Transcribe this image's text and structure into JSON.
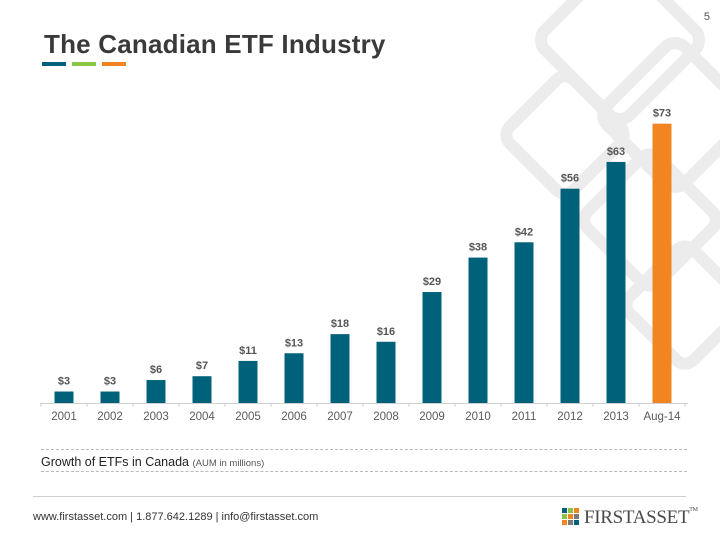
{
  "page": {
    "number": "5"
  },
  "title": {
    "text": "The Canadian ETF Industry",
    "underline_colors": [
      "#00627a",
      "#8bc342",
      "#f28421"
    ]
  },
  "chart_data": {
    "type": "bar",
    "categories": [
      "2001",
      "2002",
      "2003",
      "2004",
      "2005",
      "2006",
      "2007",
      "2008",
      "2009",
      "2010",
      "2011",
      "2012",
      "2013",
      "Aug-14"
    ],
    "values": [
      3,
      3,
      6,
      7,
      11,
      13,
      18,
      16,
      29,
      38,
      42,
      56,
      63,
      73
    ],
    "data_labels": [
      "$3",
      "$3",
      "$6",
      "$7",
      "$11",
      "$13",
      "$18",
      "$16",
      "$29",
      "$38",
      "$42",
      "$56",
      "$63",
      "$73"
    ],
    "highlight_index": 13,
    "colors": {
      "bar": "#00627a",
      "highlight": "#f28421",
      "label": "#555555"
    },
    "xlabel": "",
    "ylabel": "",
    "ylim": [
      0,
      75
    ],
    "grid": false,
    "legend": "none"
  },
  "caption": {
    "main": "Growth of ETFs in Canada",
    "sub": "(AUM in millions)"
  },
  "footer": {
    "contact": "www.firstasset.com | 1.877.642.1289 | info@firstasset.com",
    "logo_text": "FIRSTASSET",
    "logo_tm": "TM",
    "logo_colors": [
      "#00627a",
      "#8bc342",
      "#f28421",
      "#7a7a7a"
    ]
  }
}
